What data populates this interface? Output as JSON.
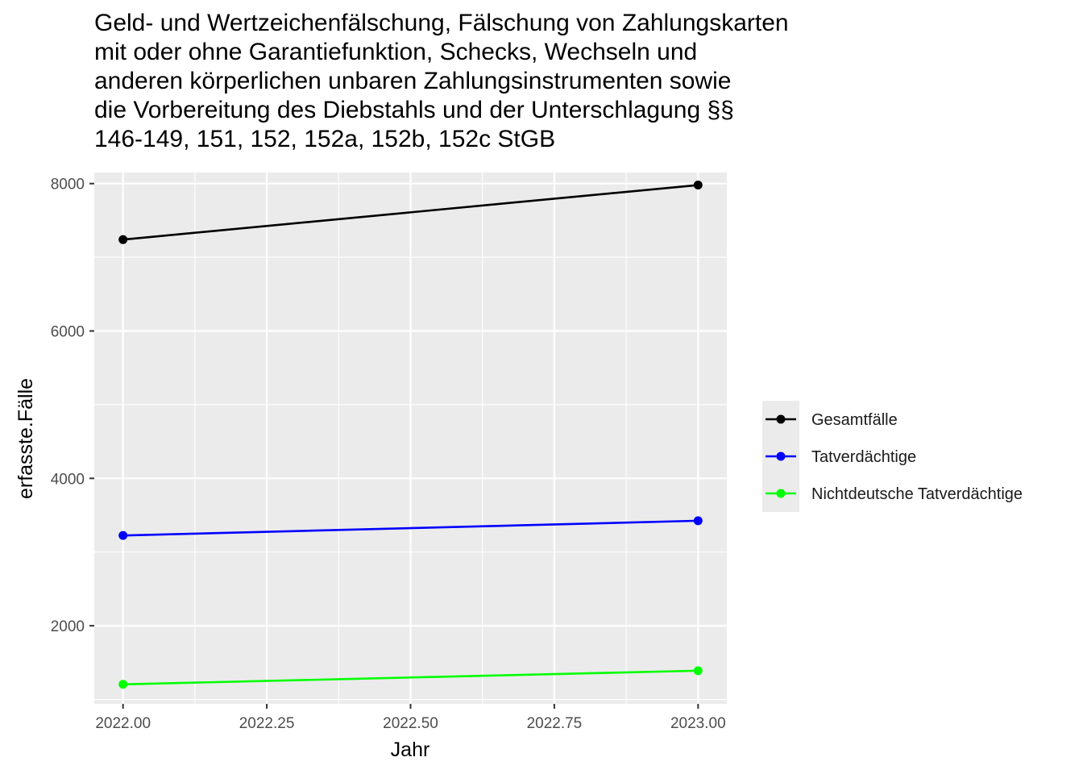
{
  "chart_data": {
    "type": "line",
    "title_lines": [
      "Geld- und Wertzeichenfälschung, Fälschung von Zahlungskarten",
      "mit oder ohne Garantiefunktion, Schecks, Wechseln und",
      "anderen körperlichen unbaren Zahlungsinstrumenten sowie",
      "die Vorbereitung des Diebstahls und der Unterschlagung §§",
      "146-149, 151, 152, 152a, 152b, 152c StGB"
    ],
    "xlabel": "Jahr",
    "ylabel": "erfasste.Fälle",
    "x": [
      2022,
      2023
    ],
    "xlim": [
      1997.5,
      2023.05
    ],
    "ylim": [
      940,
      8150
    ],
    "x_ticks": [
      2022.0,
      2022.25,
      2022.5,
      2022.75,
      2023.0
    ],
    "x_tick_labels": [
      "2022.00",
      "2022.25",
      "2022.50",
      "2022.75",
      "2023.00"
    ],
    "y_ticks": [
      2000,
      4000,
      6000,
      8000
    ],
    "y_tick_labels": [
      "2000",
      "4000",
      "6000",
      "8000"
    ],
    "grid": true,
    "legend_position": "right",
    "series": [
      {
        "name": "Gesamtfälle",
        "color": "#000000",
        "values": [
          7240,
          7980
        ]
      },
      {
        "name": "Tatverdächtige",
        "color": "#0000ff",
        "values": [
          3225,
          3425
        ]
      },
      {
        "name": "Nichtdeutsche Tatverdächtige",
        "color": "#00ff00",
        "values": [
          1205,
          1390
        ]
      }
    ]
  }
}
